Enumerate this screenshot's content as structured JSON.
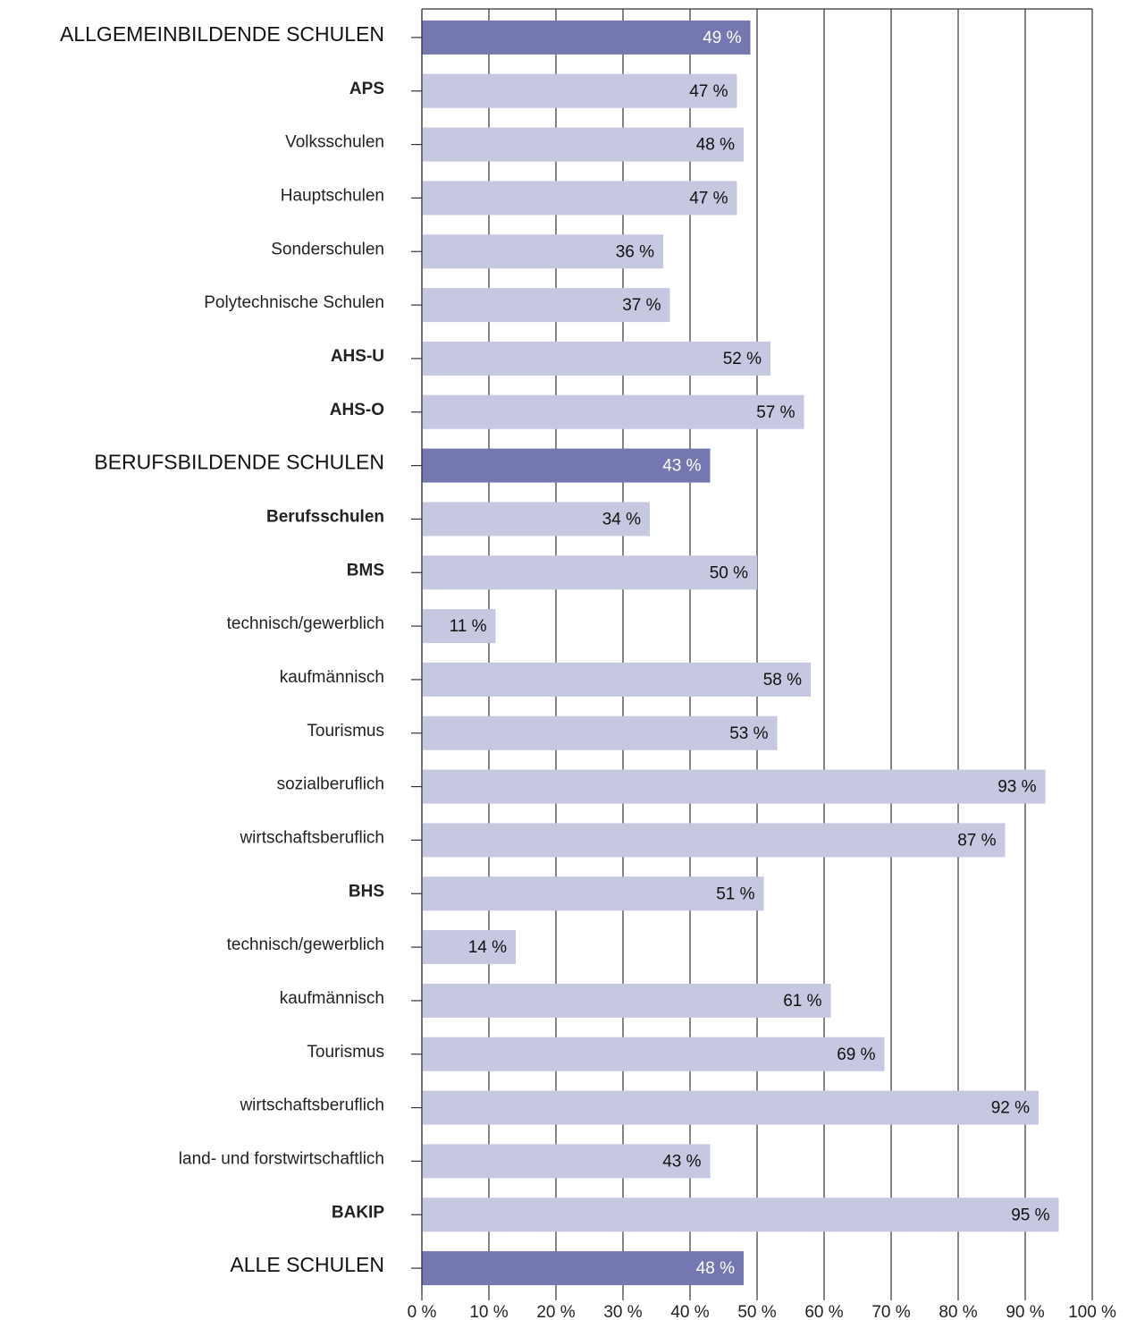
{
  "chart_data": {
    "type": "hbar",
    "categories": [
      "ALLGEMEINBILDENDE SCHULEN",
      "APS",
      "Volksschulen",
      "Hauptschulen",
      "Sonderschulen",
      "Polytechnische Schulen",
      "AHS-U",
      "AHS-O",
      "BERUFSBILDENDE SCHULEN",
      "Berufsschulen",
      "BMS",
      "technisch/gewerblich",
      "kaufmännisch",
      "Tourismus",
      "sozialberuflich",
      "wirtschaftsberuflich",
      "BHS",
      "technisch/gewerblich",
      "kaufmännisch",
      "Tourismus",
      "wirtschaftsberuflich",
      "land- und forstwirtschaftlich",
      "BAKIP",
      "ALLE SCHULEN"
    ],
    "label_styles": [
      "group",
      "bold",
      "plain",
      "plain",
      "plain",
      "plain",
      "bold",
      "bold",
      "group",
      "bold",
      "bold",
      "plain",
      "plain",
      "plain",
      "plain",
      "plain",
      "bold",
      "plain",
      "plain",
      "plain",
      "plain",
      "plain",
      "bold",
      "group"
    ],
    "values": [
      49,
      47,
      48,
      47,
      36,
      37,
      52,
      57,
      43,
      34,
      50,
      11,
      58,
      53,
      93,
      87,
      51,
      14,
      61,
      69,
      92,
      43,
      95,
      48
    ],
    "value_labels": [
      "49 %",
      "47 %",
      "48 %",
      "47 %",
      "36 %",
      "37 %",
      "52 %",
      "57 %",
      "43 %",
      "34 %",
      "50 %",
      "11 %",
      "58 %",
      "53 %",
      "93 %",
      "87 %",
      "51 %",
      "14 %",
      "61 %",
      "69 %",
      "92 %",
      "43 %",
      "95 %",
      "48 %"
    ],
    "color": "#c6c7e0",
    "group_color": "#7577b0",
    "xlim": [
      0,
      100
    ],
    "xticks": [
      {
        "value": 0,
        "label": "0 %"
      },
      {
        "value": 10,
        "label": "10 %"
      },
      {
        "value": 20,
        "label": "20 %"
      },
      {
        "value": 30,
        "label": "30 %"
      },
      {
        "value": 40,
        "label": "40 %"
      },
      {
        "value": 50,
        "label": "50 %"
      },
      {
        "value": 60,
        "label": "60 %"
      },
      {
        "value": 70,
        "label": "70 %"
      },
      {
        "value": 80,
        "label": "80 %"
      },
      {
        "value": 90,
        "label": "90 %"
      },
      {
        "value": 100,
        "label": "100 %"
      }
    ],
    "grid": true
  }
}
